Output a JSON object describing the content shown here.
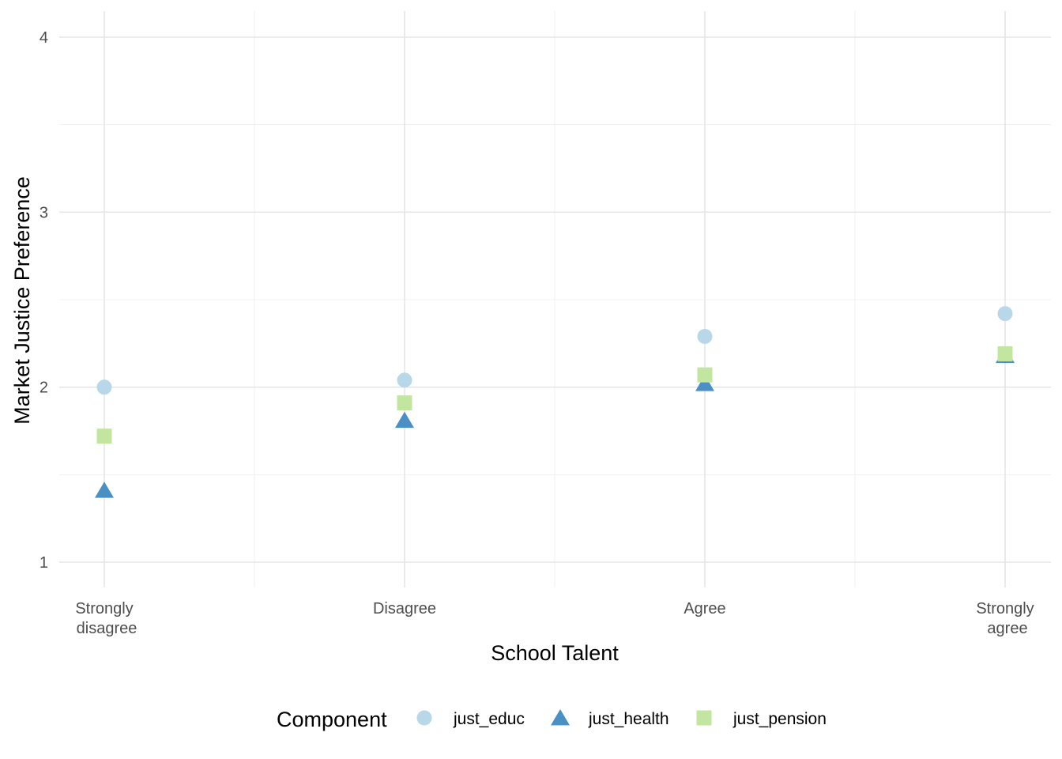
{
  "chart_data": {
    "type": "scatter",
    "title": "",
    "xlabel": "School Talent",
    "ylabel": "Market Justice Preference",
    "categories": [
      "Strongly\ndisagree",
      "Disagree",
      "Agree",
      "Strongly\nagree"
    ],
    "ylim": [
      0.85,
      4.1
    ],
    "y_ticks": [
      1,
      2,
      3,
      4
    ],
    "grid": true,
    "legend": {
      "title": "Component",
      "position": "bottom"
    },
    "series": [
      {
        "name": "just_educ",
        "shape": "circle",
        "color": "#b8d7e9",
        "values": [
          2.0,
          2.04,
          2.29,
          2.42
        ]
      },
      {
        "name": "just_health",
        "shape": "triangle",
        "color": "#4a90c4",
        "values": [
          1.41,
          1.81,
          2.02,
          2.18
        ]
      },
      {
        "name": "just_pension",
        "shape": "square",
        "color": "#c2e5a0",
        "values": [
          1.72,
          1.91,
          2.07,
          2.19
        ]
      }
    ]
  }
}
